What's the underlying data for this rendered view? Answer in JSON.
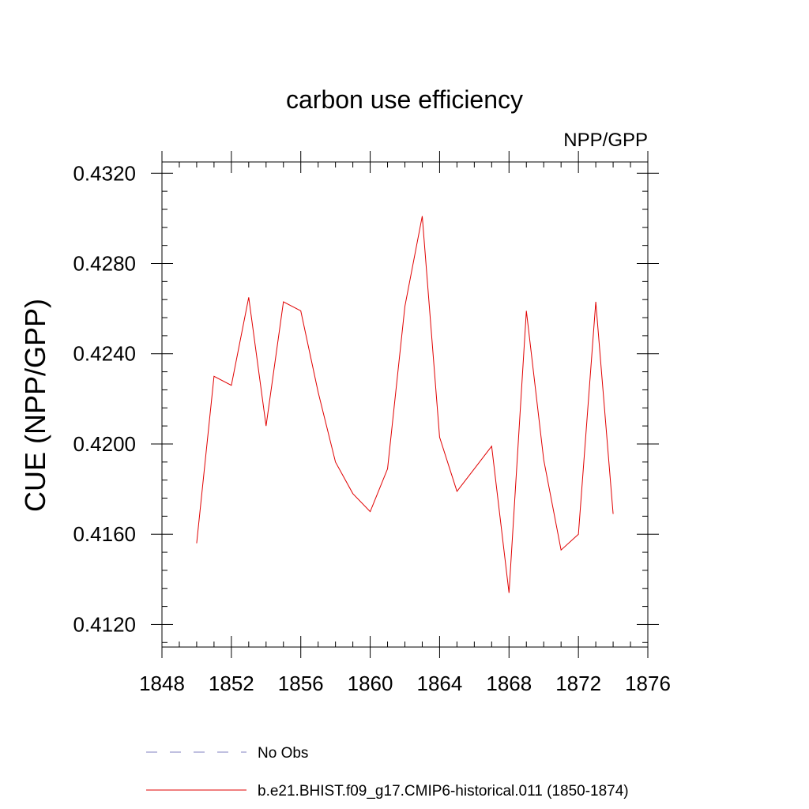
{
  "chart_data": {
    "type": "line",
    "title": "carbon use efficiency",
    "subtitle": "NPP/GPP",
    "xlabel": "",
    "ylabel": "CUE  (NPP/GPP)",
    "xlim": [
      1848,
      1876
    ],
    "ylim": [
      0.411,
      0.4325
    ],
    "x_ticks": [
      "1848",
      "1852",
      "1856",
      "1860",
      "1864",
      "1868",
      "1872",
      "1876"
    ],
    "y_ticks": [
      "0.4120",
      "0.4160",
      "0.4200",
      "0.4240",
      "0.4280",
      "0.4320"
    ],
    "grid": false,
    "legend_position": "bottom",
    "series": [
      {
        "name": "No Obs",
        "color": "#8080c0",
        "style": "dashed",
        "x": [],
        "y": []
      },
      {
        "name": "b.e21.BHIST.f09_g17.CMIP6-historical.011 (1850-1874)",
        "color": "#e00000",
        "style": "solid",
        "x": [
          1850,
          1851,
          1852,
          1853,
          1854,
          1855,
          1856,
          1857,
          1858,
          1859,
          1860,
          1861,
          1862,
          1863,
          1864,
          1865,
          1866,
          1867,
          1868,
          1869,
          1870,
          1871,
          1872,
          1873,
          1874
        ],
        "y": [
          0.4156,
          0.423,
          0.4226,
          0.4265,
          0.4208,
          0.4263,
          0.4259,
          0.4223,
          0.4192,
          0.4178,
          0.417,
          0.4189,
          0.4261,
          0.4301,
          0.4203,
          0.4179,
          0.4189,
          0.4199,
          0.4134,
          0.4259,
          0.4193,
          0.4153,
          0.416,
          0.4263,
          0.4169
        ]
      }
    ]
  }
}
